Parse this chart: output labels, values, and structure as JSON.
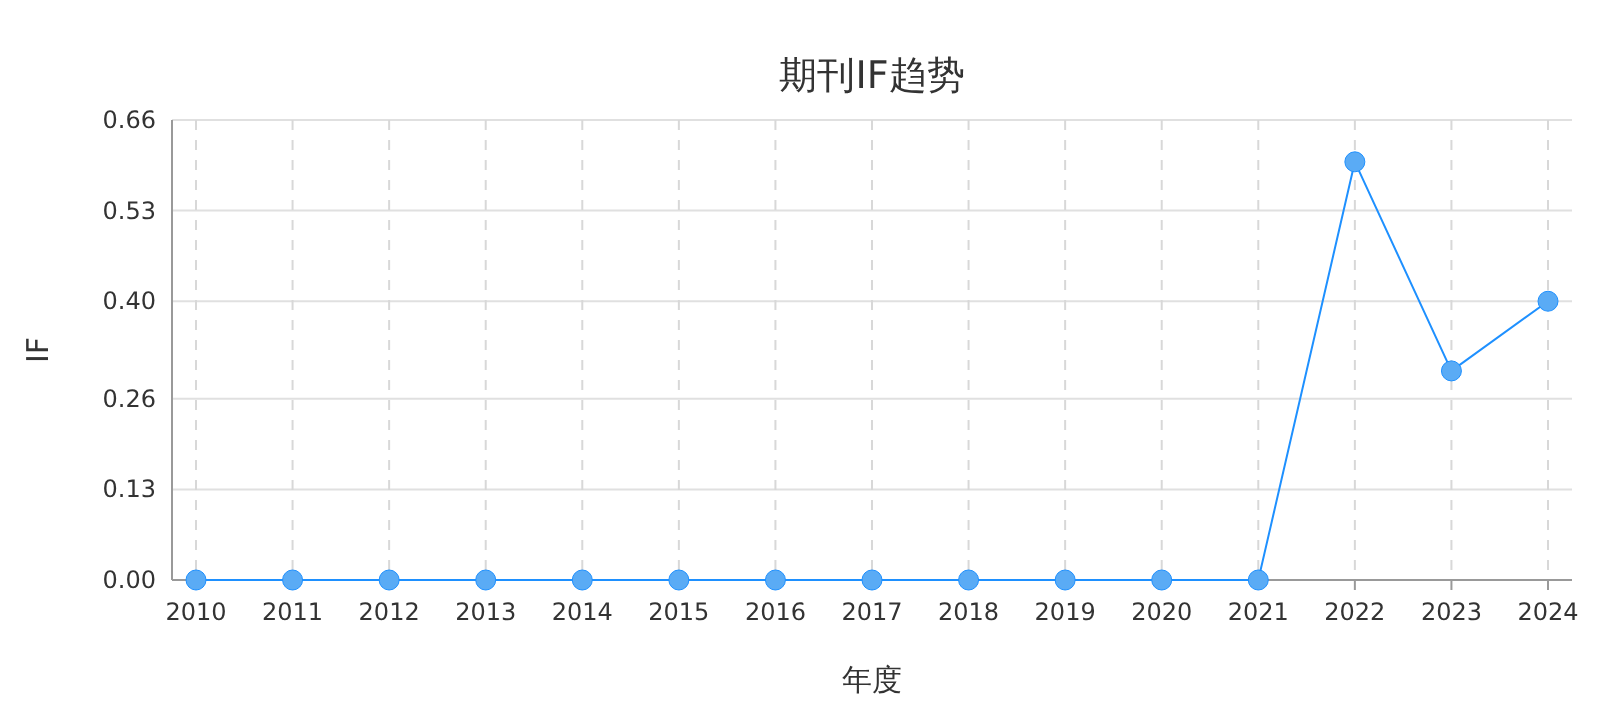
{
  "chart_data": {
    "type": "line",
    "title": "期刊IF趋势",
    "xlabel": "年度",
    "ylabel": "IF",
    "categories": [
      "2010",
      "2011",
      "2012",
      "2013",
      "2014",
      "2015",
      "2016",
      "2017",
      "2018",
      "2019",
      "2020",
      "2021",
      "2022",
      "2023",
      "2024"
    ],
    "series": [
      {
        "color": "#1e90ff",
        "values": [
          0,
          0,
          0,
          0,
          0,
          0,
          0,
          0,
          0,
          0,
          0,
          0,
          0.6,
          0.3,
          0.4
        ]
      }
    ],
    "ylim": [
      0,
      0.66
    ],
    "yticks": [
      {
        "value": 0,
        "label": "0.00"
      },
      {
        "value": 0.13,
        "label": "0.13"
      },
      {
        "value": 0.26,
        "label": "0.26"
      },
      {
        "value": 0.4,
        "label": "0.40"
      },
      {
        "value": 0.53,
        "label": "0.53"
      },
      {
        "value": 0.66,
        "label": "0.66"
      }
    ],
    "grid": true,
    "marker": "circle"
  }
}
